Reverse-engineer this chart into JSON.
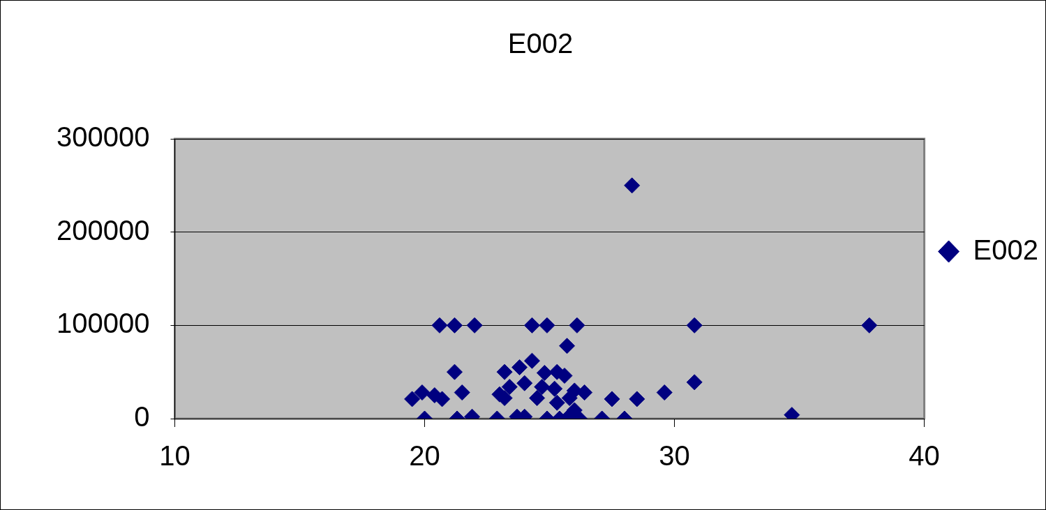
{
  "chart_data": {
    "type": "scatter",
    "title": "E002",
    "legend": "right",
    "marker": "diamond",
    "grid": "y",
    "xlim": [
      10,
      40
    ],
    "xticks": [
      10,
      20,
      30,
      40
    ],
    "ylim": [
      0,
      300000
    ],
    "yticks": [
      0,
      100000,
      200000,
      300000
    ],
    "series": [
      {
        "name": "E002",
        "color": "#000080",
        "x": [
          28.3,
          20.6,
          21.1,
          21.2,
          22.0,
          24.3,
          24.9,
          26.1,
          30.8,
          37.8,
          25.7,
          21.2,
          30.8,
          29.6,
          27.5,
          28.5,
          34.7,
          19.5,
          19.9,
          20.4,
          20.7,
          21.5,
          20.0,
          21.3,
          21.9,
          22.9,
          23.7,
          24.0,
          24.9,
          25.4,
          26.2,
          27.1,
          28.0,
          23.2,
          24.3,
          23.8,
          24.8,
          25.3,
          25.6,
          23.4,
          23.0,
          23.2,
          24.0,
          24.7,
          25.2,
          26.0,
          26.4,
          25.8,
          25.3,
          26.0,
          24.5,
          25.8
        ],
        "values": [
          250000,
          100000,
          null,
          100000,
          100000,
          100000,
          100000,
          100000,
          100000,
          100000,
          78000,
          50000,
          39000,
          28000,
          21000,
          21000,
          4000,
          21000,
          28000,
          25000,
          21000,
          28000,
          0,
          0,
          2000,
          0,
          2000,
          2000,
          0,
          0,
          0,
          0,
          0,
          50000,
          62000,
          55000,
          49000,
          50000,
          46000,
          34000,
          26000,
          22000,
          38000,
          34000,
          32000,
          30000,
          28000,
          22000,
          17000,
          9000,
          22000,
          3000
        ]
      }
    ]
  }
}
